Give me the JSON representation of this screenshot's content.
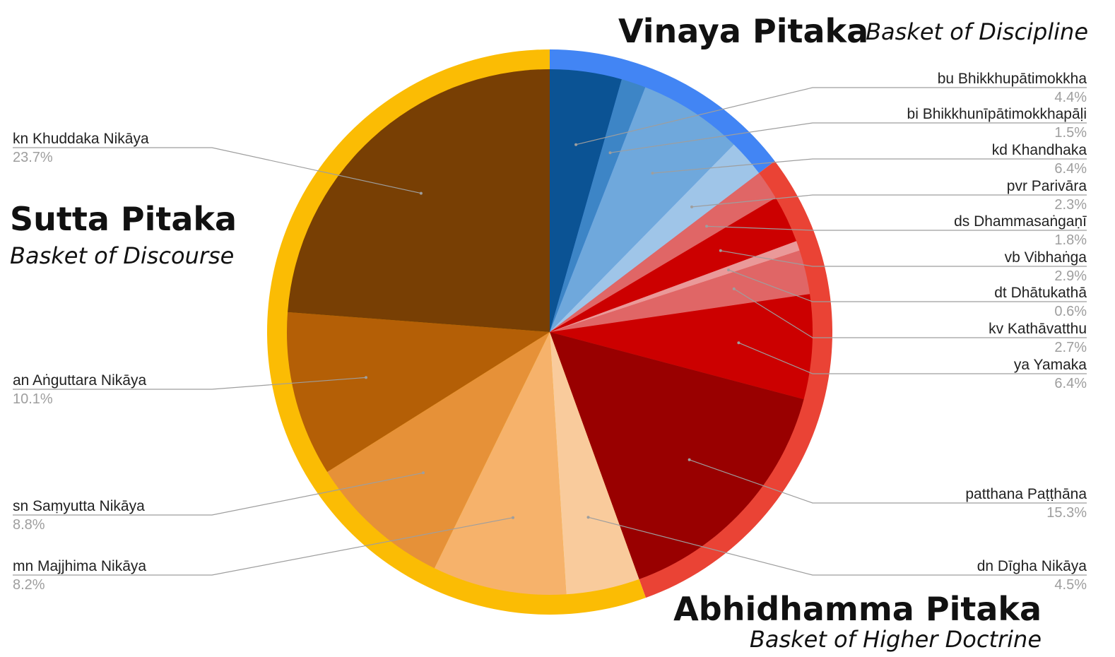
{
  "chart_data": {
    "type": "pie",
    "groups": [
      {
        "key": "vinaya",
        "title": "Vinaya Pitaka",
        "subtitle": "Basket of Discipline",
        "color": "#4285f4"
      },
      {
        "key": "abhidhamma",
        "title": "Abhidhamma Pitaka",
        "subtitle": "Basket of Higher Doctrine",
        "color": "#ea4335"
      },
      {
        "key": "sutta",
        "title": "Sutta Pitaka",
        "subtitle": "Basket of Discourse",
        "color": "#fbbc04"
      }
    ],
    "slices": [
      {
        "label": "bu Bhikkhupātimokkha",
        "value": 4.4,
        "percent": "4.4%",
        "group": "vinaya",
        "color": "#0b5394"
      },
      {
        "label": "bi Bhikkhunīpātimokkhapāḷi",
        "value": 1.5,
        "percent": "1.5%",
        "group": "vinaya",
        "color": "#3d85c6"
      },
      {
        "label": "kd Khandhaka",
        "value": 6.4,
        "percent": "6.4%",
        "group": "vinaya",
        "color": "#6fa8dc"
      },
      {
        "label": "pvr Parivāra",
        "value": 2.3,
        "percent": "2.3%",
        "group": "vinaya",
        "color": "#9fc5e8"
      },
      {
        "label": "ds Dhammasaṅgaṇī",
        "value": 1.8,
        "percent": "1.8%",
        "group": "abhidhamma",
        "color": "#e06666"
      },
      {
        "label": "vb Vibhaṅga",
        "value": 2.9,
        "percent": "2.9%",
        "group": "abhidhamma",
        "color": "#cc0000"
      },
      {
        "label": "dt Dhātukathā",
        "value": 0.6,
        "percent": "0.6%",
        "group": "abhidhamma",
        "color": "#ea9999"
      },
      {
        "label": "kv Kathāvatthu",
        "value": 2.7,
        "percent": "2.7%",
        "group": "abhidhamma",
        "color": "#e06666"
      },
      {
        "label": "ya Yamaka",
        "value": 6.4,
        "percent": "6.4%",
        "group": "abhidhamma",
        "color": "#cc0000"
      },
      {
        "label": "patthana Paṭṭhāna",
        "value": 15.3,
        "percent": "15.3%",
        "group": "abhidhamma",
        "color": "#990000"
      },
      {
        "label": "dn Dīgha Nikāya",
        "value": 4.5,
        "percent": "4.5%",
        "group": "sutta",
        "color": "#f9cb9c"
      },
      {
        "label": "mn Majjhima Nikāya",
        "value": 8.2,
        "percent": "8.2%",
        "group": "sutta",
        "color": "#f6b26b"
      },
      {
        "label": "sn Saṃyutta Nikāya",
        "value": 8.8,
        "percent": "8.8%",
        "group": "sutta",
        "color": "#e69138"
      },
      {
        "label": "an Aṅguttara Nikāya",
        "value": 10.1,
        "percent": "10.1%",
        "group": "sutta",
        "color": "#b45f06"
      },
      {
        "label": "kn Khuddaka Nikāya",
        "value": 23.7,
        "percent": "23.7%",
        "group": "sutta",
        "color": "#783f04"
      }
    ],
    "start_angle_deg": 0,
    "direction": "clockwise",
    "legend": "none",
    "labels": "outside with leader lines"
  }
}
